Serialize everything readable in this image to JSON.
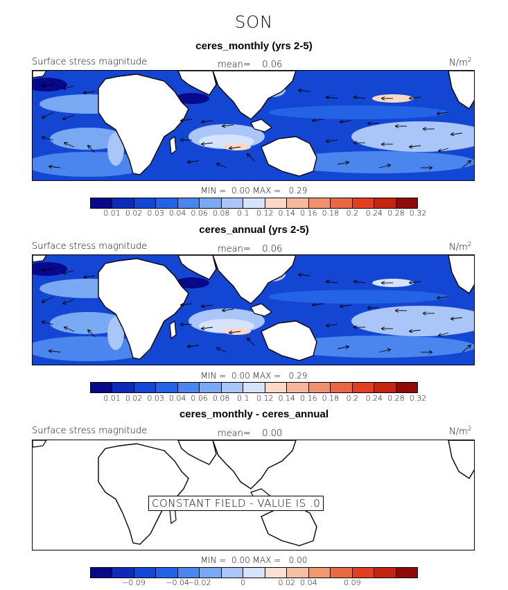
{
  "season": "SON",
  "panels": [
    {
      "title": "ceres_monthly (yrs 2-5)",
      "left_label": "Surface stress magnitude",
      "mean_label": "mean=",
      "mean_value": "0.06",
      "units": "N/m",
      "units_sup": "2",
      "min_label": "MIN =",
      "min_value": "0.00",
      "max_label": "MAX =",
      "max_value": "0.29",
      "ticks": [
        "0.01",
        "0.02",
        "0.03",
        "0.04",
        "0.06",
        "0.08",
        "0.1",
        "0.12",
        "0.14",
        "0.16",
        "0.18",
        "0.2",
        "0.24",
        "0.28",
        "0.32"
      ]
    },
    {
      "title": "ceres_annual (yrs 2-5)",
      "left_label": "Surface stress magnitude",
      "mean_label": "mean=",
      "mean_value": "0.06",
      "units": "N/m",
      "units_sup": "2",
      "min_label": "MIN =",
      "min_value": "0.00",
      "max_label": "MAX =",
      "max_value": "0.29",
      "ticks": [
        "0.01",
        "0.02",
        "0.03",
        "0.04",
        "0.06",
        "0.08",
        "0.1",
        "0.12",
        "0.14",
        "0.16",
        "0.18",
        "0.2",
        "0.24",
        "0.28",
        "0.32"
      ]
    },
    {
      "title": "ceres_monthly - ceres_annual",
      "left_label": "Surface stress magnitude",
      "mean_label": "mean=",
      "mean_value": "0.00",
      "units": "N/m",
      "units_sup": "2",
      "min_label": "MIN =",
      "min_value": "0.00",
      "max_label": "MAX =",
      "max_value": "0.00",
      "constant_text": "CONSTANT FIELD - VALUE IS .0",
      "ticks": [
        "−0.09",
        "−0.04",
        "−0.02",
        "0",
        "0.02",
        "0.04",
        "0.09"
      ]
    }
  ],
  "colors": {
    "stress_scale": [
      "#08088a",
      "#0b2bb8",
      "#1446d4",
      "#2463e6",
      "#4a86ee",
      "#7aa9f3",
      "#aac6f8",
      "#d6e4fb",
      "#fbd9c6",
      "#f6b89c",
      "#f1906f",
      "#ea6744",
      "#e0401f",
      "#c42411",
      "#900a0a"
    ],
    "diff_scale": [
      "#08088a",
      "#0b2bb8",
      "#1446d4",
      "#2463e6",
      "#4a86ee",
      "#7aa9f3",
      "#aac6f8",
      "#d6e4fb",
      "#fbe0d2",
      "#f6c0a5",
      "#f1986f",
      "#ea6a44",
      "#e0401f",
      "#c42411",
      "#900a0a"
    ]
  }
}
